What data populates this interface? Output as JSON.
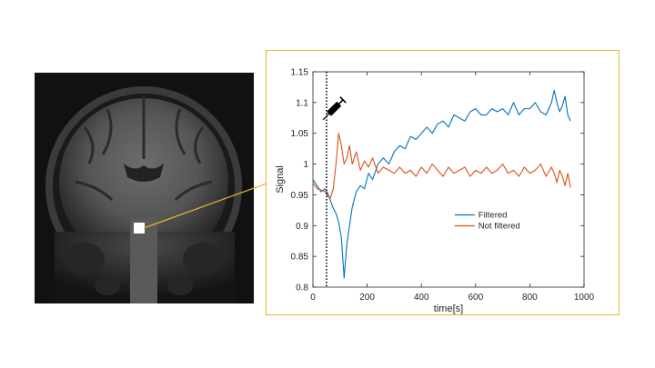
{
  "colors": {
    "panel_border": "#e8b52c",
    "connector": "#e8b52c",
    "filtered": "#0072bd",
    "not_filtered": "#d95319",
    "roi_marker": "#ffffff",
    "mri_background": "#111111"
  },
  "image": {
    "kind": "coronal brain MRI slice",
    "roi_icon": "white-square-roi-marker",
    "injection_icon": "syringe-icon"
  },
  "chart_data": {
    "type": "line",
    "title": "",
    "xlabel": "time[s]",
    "ylabel": "Signal",
    "xlim": [
      0,
      1000
    ],
    "ylim": [
      0.8,
      1.15
    ],
    "xticks": [
      0,
      200,
      400,
      600,
      800,
      1000
    ],
    "yticks": [
      0.8,
      0.85,
      0.9,
      0.95,
      1,
      1.05,
      1.1,
      1.15
    ],
    "xtick_labels": [
      "0",
      "200",
      "400",
      "600",
      "800",
      "1000"
    ],
    "ytick_labels": [
      "0.8",
      "0.85",
      "0.9",
      "0.95",
      "1",
      "1.05",
      "1.1",
      "1.15"
    ],
    "grid": false,
    "legend_position": "center-right",
    "injection_marker": {
      "x": 50,
      "style": "dotted vertical line"
    },
    "series": [
      {
        "name": "Filtered",
        "x": [
          0,
          15,
          30,
          45,
          55,
          65,
          75,
          85,
          95,
          105,
          115,
          125,
          135,
          145,
          160,
          175,
          190,
          205,
          220,
          240,
          260,
          280,
          300,
          320,
          340,
          360,
          380,
          400,
          420,
          440,
          460,
          480,
          500,
          520,
          540,
          560,
          580,
          600,
          620,
          640,
          660,
          680,
          700,
          720,
          740,
          760,
          780,
          800,
          820,
          840,
          860,
          880,
          890,
          900,
          910,
          920,
          930,
          940,
          950
        ],
        "y": [
          0.975,
          0.965,
          0.955,
          0.96,
          0.952,
          0.94,
          0.928,
          0.92,
          0.905,
          0.88,
          0.815,
          0.87,
          0.9,
          0.93,
          0.955,
          0.965,
          0.96,
          0.985,
          0.975,
          1.0,
          1.01,
          1.0,
          1.02,
          1.03,
          1.025,
          1.045,
          1.04,
          1.05,
          1.06,
          1.05,
          1.065,
          1.07,
          1.06,
          1.08,
          1.075,
          1.07,
          1.085,
          1.09,
          1.08,
          1.08,
          1.09,
          1.085,
          1.09,
          1.08,
          1.1,
          1.08,
          1.09,
          1.09,
          1.1,
          1.085,
          1.08,
          1.1,
          1.12,
          1.1,
          1.085,
          1.095,
          1.11,
          1.08,
          1.07
        ]
      },
      {
        "name": "Not filtered",
        "x": [
          0,
          15,
          30,
          45,
          55,
          65,
          75,
          85,
          95,
          105,
          115,
          125,
          135,
          145,
          160,
          175,
          190,
          205,
          220,
          240,
          260,
          280,
          300,
          320,
          340,
          360,
          380,
          400,
          420,
          440,
          460,
          480,
          500,
          520,
          540,
          560,
          580,
          600,
          620,
          640,
          660,
          680,
          700,
          720,
          740,
          760,
          780,
          800,
          820,
          840,
          860,
          880,
          890,
          900,
          910,
          920,
          930,
          940,
          950
        ],
        "y": [
          0.97,
          0.96,
          0.958,
          0.955,
          0.948,
          0.945,
          0.96,
          1.0,
          1.05,
          1.03,
          1.0,
          1.01,
          1.03,
          1.0,
          1.02,
          0.99,
          1.005,
          0.995,
          1.01,
          0.985,
          0.995,
          0.99,
          0.985,
          0.995,
          0.985,
          0.99,
          0.98,
          0.995,
          0.985,
          1.0,
          0.99,
          0.98,
          0.995,
          0.985,
          0.99,
          0.995,
          0.98,
          0.99,
          0.985,
          0.995,
          0.985,
          0.99,
          1.0,
          0.985,
          0.99,
          0.98,
          0.995,
          0.985,
          0.99,
          1.0,
          0.98,
          0.995,
          0.985,
          0.97,
          0.99,
          0.98,
          0.965,
          0.985,
          0.962
        ]
      }
    ]
  }
}
